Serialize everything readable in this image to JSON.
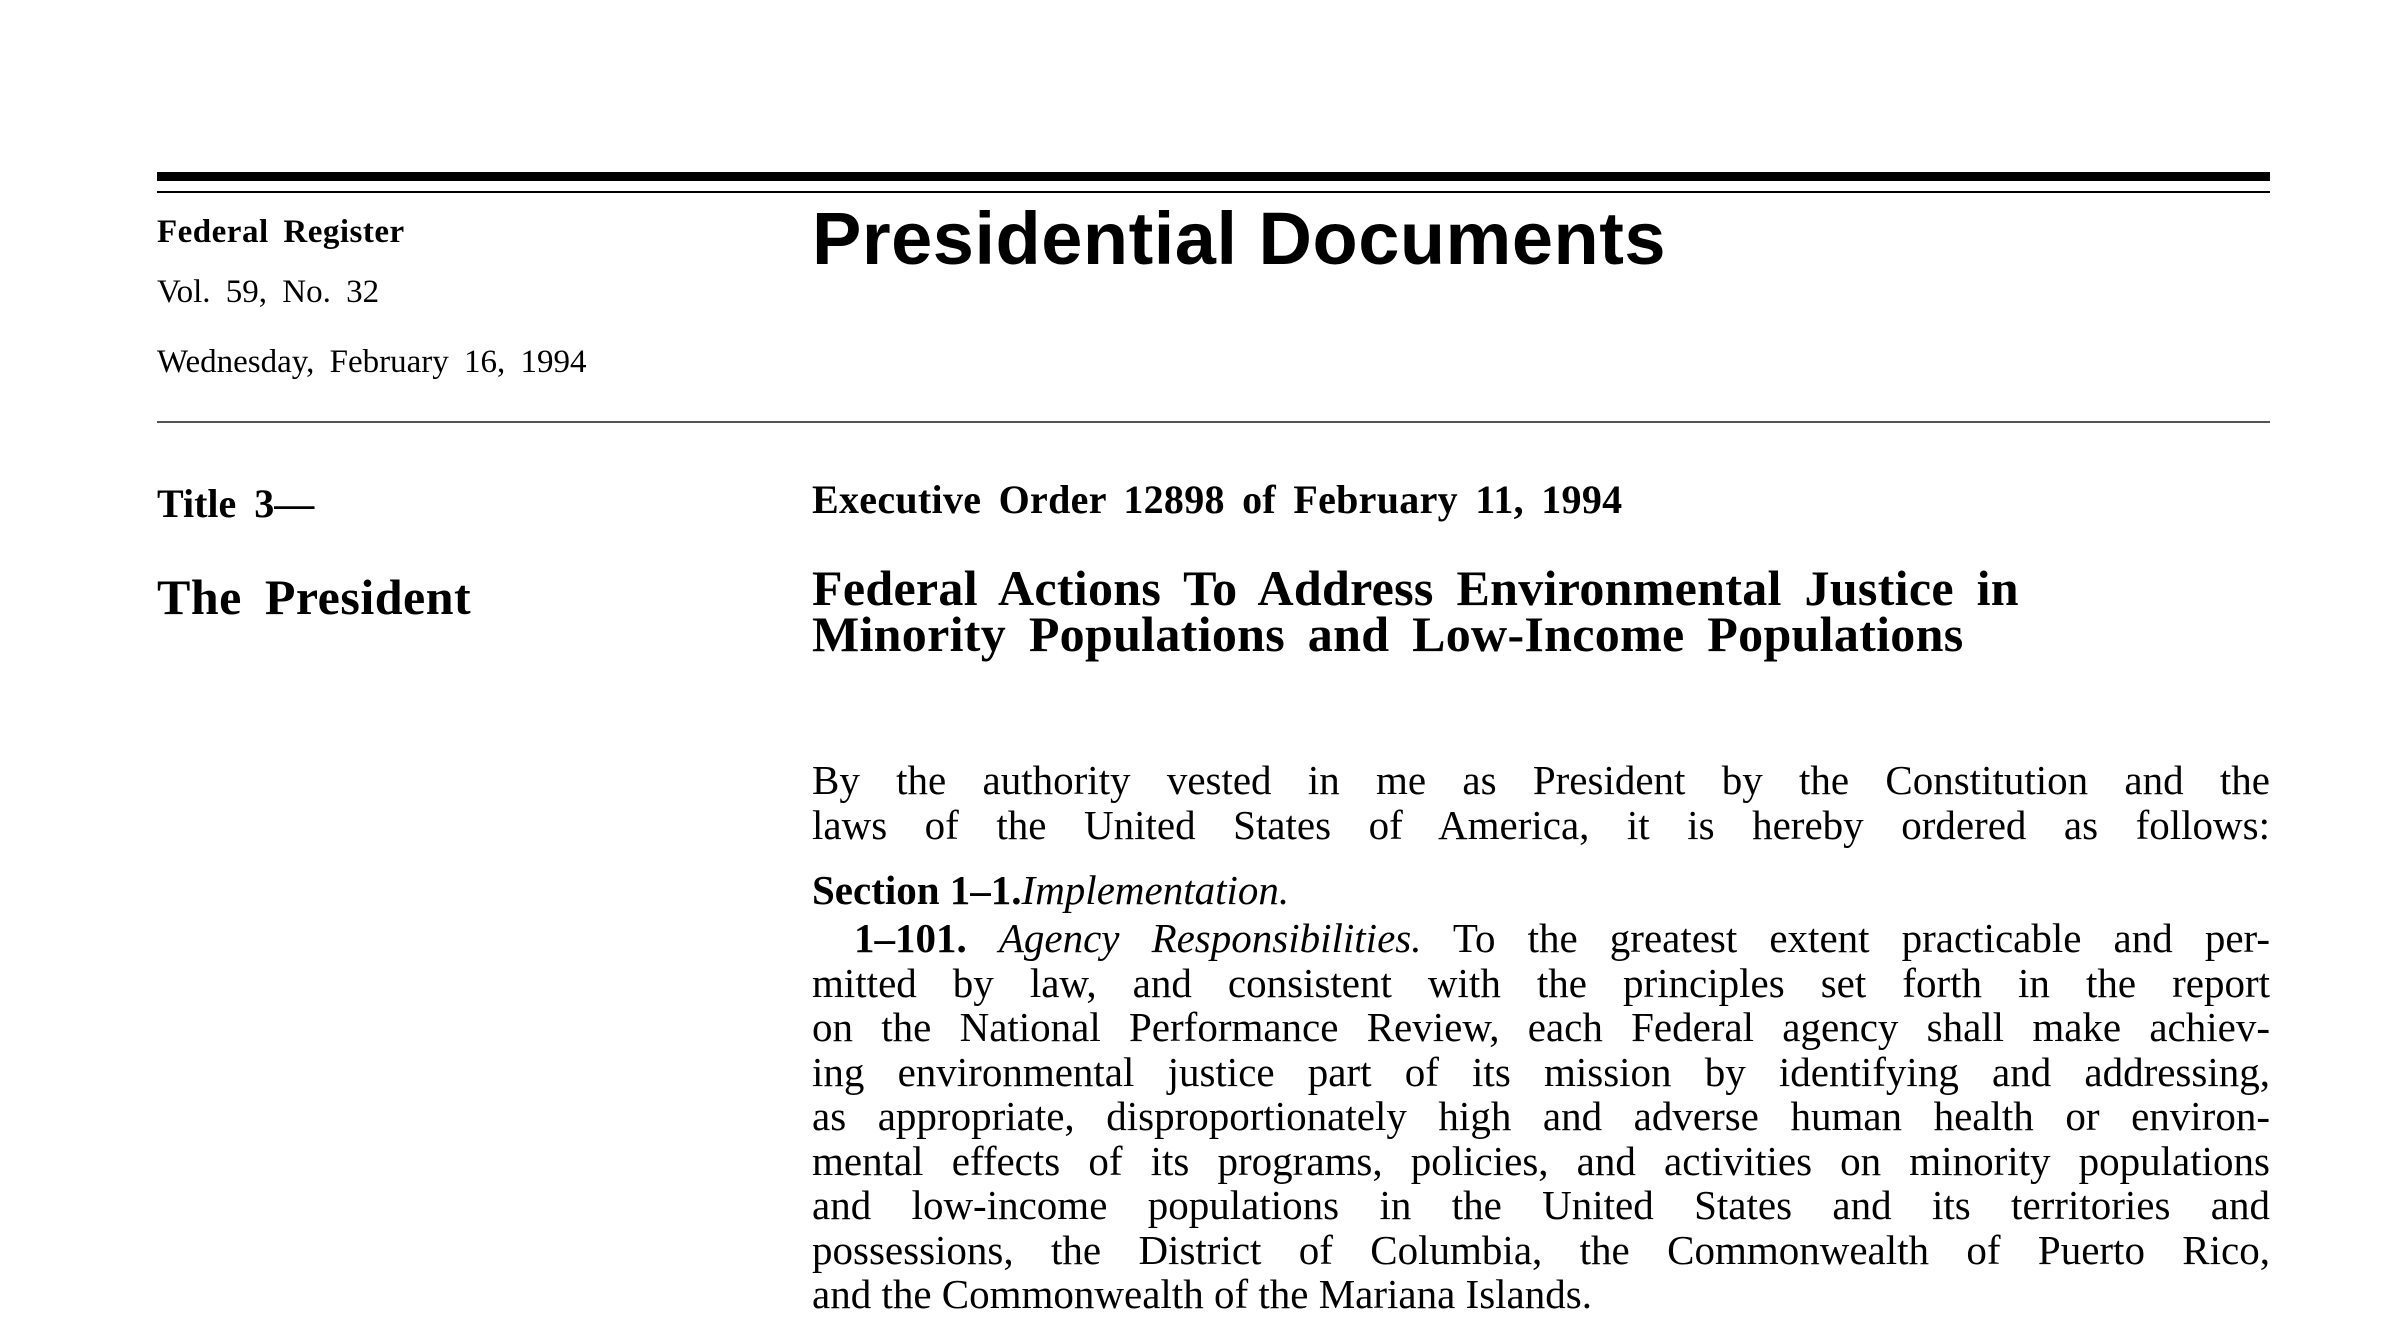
{
  "header": {
    "publication": "Federal Register",
    "volume": "Vol. 59, No. 32",
    "date": "Wednesday, February 16, 1994",
    "section_title": "Presidential Documents"
  },
  "left_column": {
    "title": "Title 3—",
    "subtitle": "The President"
  },
  "order": {
    "number_line": "Executive Order 12898 of February 11, 1994",
    "title_lines": [
      "Federal Actions To Address Environmental Justice in",
      "Minority Populations and Low-Income Populations"
    ],
    "preamble_lines": [
      "By the authority vested in me as President by the Constitution and the",
      "laws of the United States of America, it is hereby ordered as follows:"
    ],
    "section_number": "Section 1–1.",
    "section_name": "Implementation.",
    "paragraph_number": "1–101.",
    "paragraph_heading": "Agency Responsibilities.",
    "paragraph_lines": [
      "To the greatest extent practicable and per-",
      "mitted by law, and consistent with the principles set forth in the report",
      "on the National Performance Review, each Federal agency shall make achiev-",
      "ing environmental justice part of its mission by identifying and addressing,",
      "as appropriate, disproportionately high and adverse human health or environ-",
      "mental effects of its programs, policies, and activities on minority populations",
      "and low-income populations in the United States and its territories and",
      "possessions, the District of Columbia, the Commonwealth of Puerto Rico,",
      "and the Commonwealth of the Mariana Islands."
    ]
  }
}
